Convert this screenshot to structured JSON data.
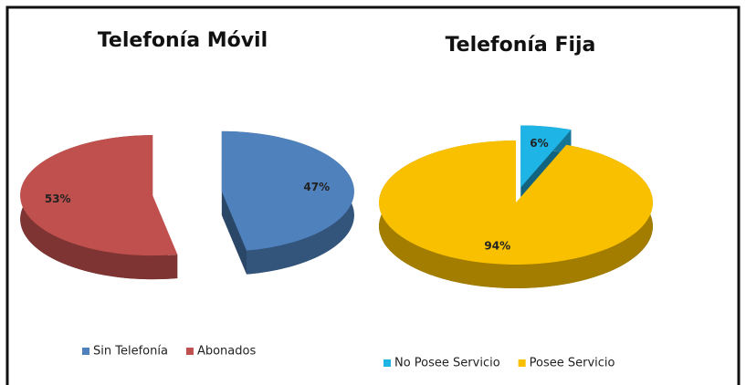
{
  "chart_data": [
    {
      "type": "pie",
      "title": "Telefonía Móvil",
      "categories": [
        "Sin Telefonía",
        "Abonados"
      ],
      "values": [
        47,
        53
      ],
      "value_labels": [
        "47%",
        "53%"
      ],
      "colors": [
        "#4f81bd",
        "#c0504d"
      ],
      "legend": "bottom"
    },
    {
      "type": "pie",
      "title": "Telefonía Fija",
      "categories": [
        "No Posee Servicio",
        "Posee Servicio"
      ],
      "values": [
        6,
        94
      ],
      "value_labels": [
        "6%",
        "94%"
      ],
      "colors": [
        "#1fb4e6",
        "#f9c000"
      ],
      "legend": "bottom"
    }
  ]
}
